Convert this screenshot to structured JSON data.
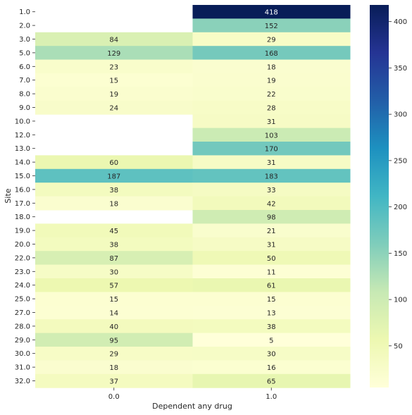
{
  "chart_data": {
    "type": "heatmap",
    "title": "",
    "xlabel": "Dependent any drug",
    "ylabel": "Site",
    "x_categories": [
      "0.0",
      "1.0"
    ],
    "y_categories": [
      "1.0",
      "2.0",
      "3.0",
      "5.0",
      "6.0",
      "7.0",
      "8.0",
      "9.0",
      "10.0",
      "12.0",
      "13.0",
      "14.0",
      "15.0",
      "16.0",
      "17.0",
      "18.0",
      "19.0",
      "20.0",
      "22.0",
      "23.0",
      "24.0",
      "25.0",
      "27.0",
      "28.0",
      "29.0",
      "30.0",
      "31.0",
      "32.0"
    ],
    "values": [
      [
        null,
        418
      ],
      [
        null,
        152
      ],
      [
        84,
        29
      ],
      [
        129,
        168
      ],
      [
        23,
        18
      ],
      [
        15,
        19
      ],
      [
        19,
        22
      ],
      [
        24,
        28
      ],
      [
        null,
        31
      ],
      [
        null,
        103
      ],
      [
        null,
        170
      ],
      [
        60,
        31
      ],
      [
        187,
        183
      ],
      [
        38,
        33
      ],
      [
        18,
        42
      ],
      [
        null,
        98
      ],
      [
        45,
        21
      ],
      [
        38,
        31
      ],
      [
        87,
        50
      ],
      [
        30,
        11
      ],
      [
        57,
        61
      ],
      [
        15,
        15
      ],
      [
        14,
        13
      ],
      [
        40,
        38
      ],
      [
        95,
        5
      ],
      [
        29,
        30
      ],
      [
        18,
        16
      ],
      [
        37,
        65
      ]
    ],
    "colormap": "YlGnBu",
    "colorbar": {
      "min": 5,
      "max": 418,
      "ticks": [
        "50",
        "100",
        "150",
        "200",
        "250",
        "300",
        "350",
        "400"
      ],
      "tick_values": [
        50,
        100,
        150,
        200,
        250,
        300,
        350,
        400
      ]
    }
  }
}
